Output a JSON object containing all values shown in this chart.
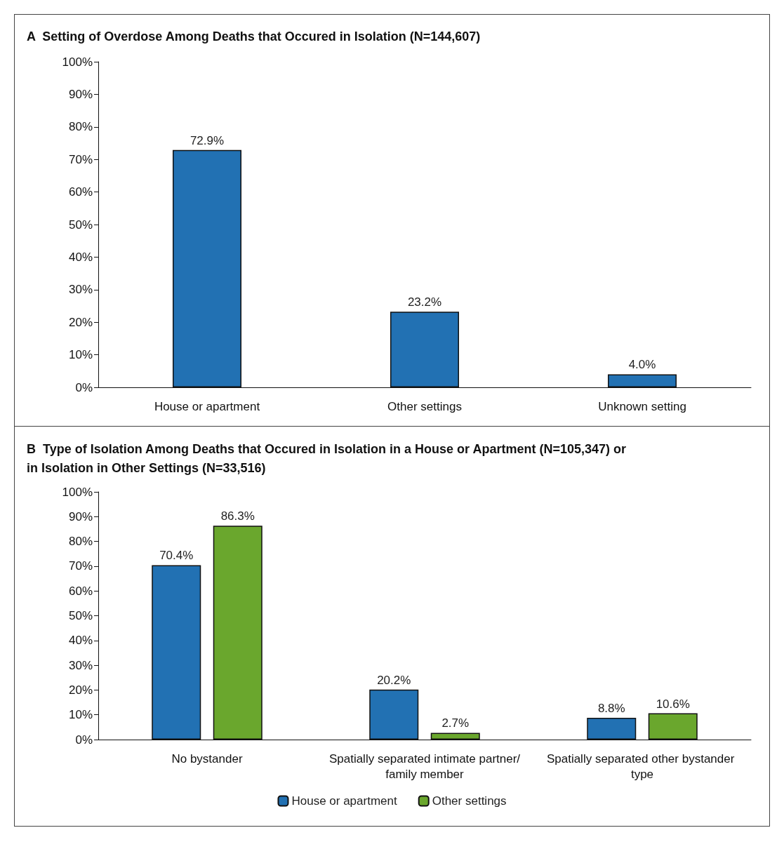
{
  "chart_data": [
    {
      "type": "bar",
      "title": "A  Setting of Overdose Among Deaths that Occured in Isolation (N=144,607)",
      "categories": [
        "House or apartment",
        "Other settings",
        "Unknown setting"
      ],
      "series": [
        {
          "color": "#2271b3",
          "values": [
            72.9,
            23.2,
            4.0
          ],
          "value_labels": [
            "72.9%",
            "23.2%",
            "4.0%"
          ]
        }
      ],
      "ylim": [
        0,
        100
      ],
      "yticks": [
        {
          "value": 0,
          "label": "0%"
        },
        {
          "value": 10,
          "label": "10%"
        },
        {
          "value": 20,
          "label": "20%"
        },
        {
          "value": 30,
          "label": "30%"
        },
        {
          "value": 40,
          "label": "40%"
        },
        {
          "value": 50,
          "label": "50%"
        },
        {
          "value": 60,
          "label": "60%"
        },
        {
          "value": 70,
          "label": "70%"
        },
        {
          "value": 80,
          "label": "80%"
        },
        {
          "value": 90,
          "label": "90%"
        },
        {
          "value": 100,
          "label": "100%"
        }
      ],
      "grid": false,
      "legend": false
    },
    {
      "type": "bar",
      "title": "B  Type of Isolation Among Deaths that Occured in Isolation in a House or Apartment (N=105,347) or in Isolation in Other Settings (N=33,516)",
      "categories": [
        "No bystander",
        "Spatially separated intimate partner/family member",
        "Spatially separated other bystander type"
      ],
      "series": [
        {
          "name": "House or apartment",
          "color": "#2271b3",
          "values": [
            70.4,
            20.2,
            8.8
          ],
          "value_labels": [
            "70.4%",
            "20.2%",
            "8.8%"
          ]
        },
        {
          "name": "Other settings",
          "color": "#6aa72d",
          "values": [
            86.3,
            2.7,
            10.6
          ],
          "value_labels": [
            "86.3%",
            "2.7%",
            "10.6%"
          ]
        }
      ],
      "ylim": [
        0,
        100
      ],
      "yticks": [
        {
          "value": 0,
          "label": "0%"
        },
        {
          "value": 10,
          "label": "10%"
        },
        {
          "value": 20,
          "label": "20%"
        },
        {
          "value": 30,
          "label": "30%"
        },
        {
          "value": 40,
          "label": "40%"
        },
        {
          "value": 50,
          "label": "50%"
        },
        {
          "value": 60,
          "label": "60%"
        },
        {
          "value": 70,
          "label": "70%"
        },
        {
          "value": 80,
          "label": "80%"
        },
        {
          "value": 90,
          "label": "90%"
        },
        {
          "value": 100,
          "label": "100%"
        }
      ],
      "grid": false,
      "legend": "bottom"
    }
  ]
}
